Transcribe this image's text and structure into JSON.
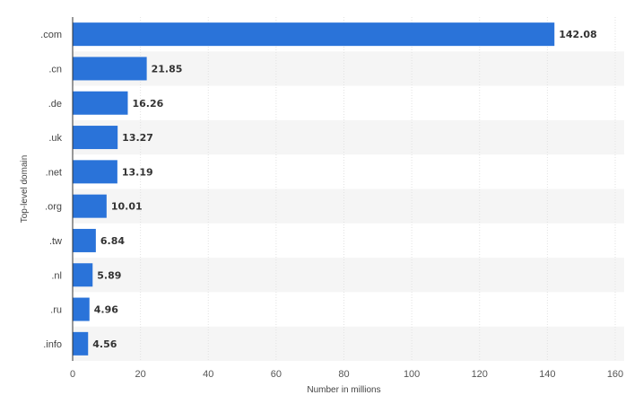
{
  "chart_data": {
    "type": "bar",
    "orientation": "horizontal",
    "categories": [
      ".com",
      ".cn",
      ".de",
      ".uk",
      ".net",
      ".org",
      ".tw",
      ".nl",
      ".ru",
      ".info"
    ],
    "values": [
      142.08,
      21.85,
      16.26,
      13.27,
      13.19,
      10.01,
      6.84,
      5.89,
      4.96,
      4.56
    ],
    "value_labels": [
      "142.08",
      "21.85",
      "16.26",
      "13.27",
      "13.19",
      "10.01",
      "6.84",
      "5.89",
      "4.96",
      "4.56"
    ],
    "xlabel": "Number in millions",
    "ylabel": "Top-level domain",
    "xlim": [
      0,
      160
    ],
    "xticks": [
      "0",
      "20",
      "40",
      "60",
      "80",
      "100",
      "120",
      "140",
      "160"
    ],
    "grid": true,
    "colors": {
      "bar": "#2a73d9",
      "band": "#f5f5f5",
      "grid": "#e2e2e2",
      "axis": "#333333"
    }
  }
}
